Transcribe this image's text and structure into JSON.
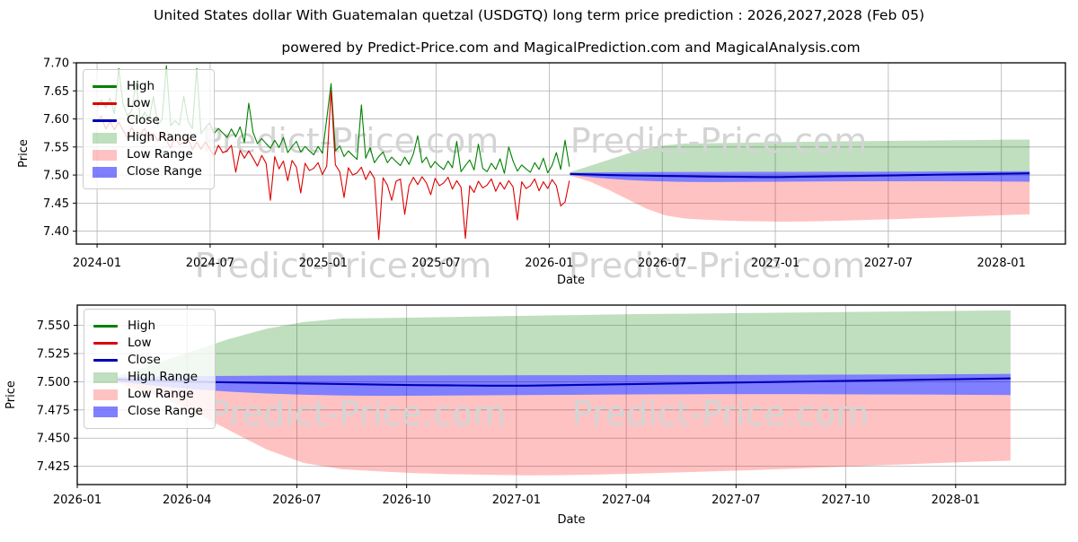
{
  "page": {
    "title": "United States dollar With Guatemalan quetzal (USDGTQ) long term price prediction : 2026,2027,2028 (Feb 05)",
    "subtitle": "powered by Predict-Price.com and MagicalPrediction.com and MagicalAnalysis.com"
  },
  "watermark": {
    "text": "Predict-Price.com"
  },
  "colors": {
    "high": "#008000",
    "low": "#dd0000",
    "close": "#0000b4",
    "high_range": "rgba(0,128,0,0.25)",
    "low_range": "rgba(255,0,0,0.24)",
    "close_range": "rgba(0,0,255,0.5)",
    "grid": "#b0b0b0",
    "frame": "#000000",
    "watermark": "#d4d4d4"
  },
  "chart_data": [
    {
      "type": "line",
      "xlabel": "Date",
      "ylabel": "Price",
      "grid": true,
      "legend_position": "upper left",
      "xlim_months": [
        -1.1,
        51.4
      ],
      "ylim": [
        7.377,
        7.7
      ],
      "xticks": [
        {
          "m": 0,
          "label": "2024-01"
        },
        {
          "m": 6,
          "label": "2024-07"
        },
        {
          "m": 12,
          "label": "2025-01"
        },
        {
          "m": 18,
          "label": "2025-07"
        },
        {
          "m": 24,
          "label": "2026-01"
        },
        {
          "m": 30,
          "label": "2026-07"
        },
        {
          "m": 36,
          "label": "2027-01"
        },
        {
          "m": 42,
          "label": "2027-07"
        },
        {
          "m": 48,
          "label": "2028-01"
        }
      ],
      "yticks": [
        {
          "v": 7.4,
          "label": "7.40"
        },
        {
          "v": 7.45,
          "label": "7.45"
        },
        {
          "v": 7.5,
          "label": "7.50"
        },
        {
          "v": 7.55,
          "label": "7.55"
        },
        {
          "v": 7.6,
          "label": "7.60"
        },
        {
          "v": 7.65,
          "label": "7.65"
        },
        {
          "v": 7.7,
          "label": "7.70"
        }
      ],
      "legend": [
        {
          "label": "High",
          "kind": "line",
          "color": "#008000"
        },
        {
          "label": "Low",
          "kind": "line",
          "color": "#dd0000"
        },
        {
          "label": "Close",
          "kind": "line",
          "color": "#0000b4"
        },
        {
          "label": "High Range",
          "kind": "patch",
          "color": "rgba(0,128,0,0.25)"
        },
        {
          "label": "Low Range",
          "kind": "patch",
          "color": "rgba(255,0,0,0.24)"
        },
        {
          "label": "Close Range",
          "kind": "patch",
          "color": "rgba(0,0,255,0.5)"
        }
      ],
      "historical": {
        "start_month": 0,
        "step_months": 0.23,
        "high": [
          7.621,
          7.634,
          7.62,
          7.637,
          7.609,
          7.69,
          7.626,
          7.606,
          7.615,
          7.665,
          7.598,
          7.612,
          7.598,
          7.64,
          7.589,
          7.599,
          7.695,
          7.588,
          7.597,
          7.589,
          7.64,
          7.596,
          7.583,
          7.69,
          7.574,
          7.584,
          7.593,
          7.574,
          7.583,
          7.575,
          7.567,
          7.582,
          7.568,
          7.586,
          7.558,
          7.628,
          7.576,
          7.556,
          7.565,
          7.556,
          7.548,
          7.562,
          7.549,
          7.567,
          7.54,
          7.551,
          7.56,
          7.541,
          7.551,
          7.543,
          7.536,
          7.551,
          7.539,
          7.6,
          7.663,
          7.543,
          7.552,
          7.533,
          7.543,
          7.535,
          7.528,
          7.625,
          7.53,
          7.549,
          7.522,
          7.533,
          7.541,
          7.522,
          7.532,
          7.524,
          7.517,
          7.532,
          7.519,
          7.538,
          7.57,
          7.522,
          7.532,
          7.513,
          7.524,
          7.516,
          7.51,
          7.525,
          7.513,
          7.56,
          7.506,
          7.517,
          7.527,
          7.509,
          7.555,
          7.512,
          7.506,
          7.521,
          7.51,
          7.529,
          7.503,
          7.55,
          7.525,
          7.507,
          7.518,
          7.511,
          7.505,
          7.522,
          7.51,
          7.53,
          7.504,
          7.517,
          7.54,
          7.51,
          7.562,
          7.515
        ],
        "low": [
          7.597,
          7.605,
          7.582,
          7.595,
          7.581,
          7.594,
          7.58,
          7.566,
          7.585,
          7.571,
          7.574,
          7.583,
          7.56,
          7.574,
          7.561,
          7.574,
          7.562,
          7.548,
          7.567,
          7.554,
          7.558,
          7.567,
          7.545,
          7.559,
          7.546,
          7.559,
          7.547,
          7.534,
          7.553,
          7.54,
          7.543,
          7.553,
          7.505,
          7.544,
          7.53,
          7.543,
          7.53,
          7.516,
          7.535,
          7.521,
          7.455,
          7.533,
          7.511,
          7.525,
          7.49,
          7.526,
          7.514,
          7.468,
          7.521,
          7.508,
          7.512,
          7.522,
          7.501,
          7.516,
          7.65,
          7.518,
          7.506,
          7.46,
          7.513,
          7.5,
          7.504,
          7.514,
          7.492,
          7.507,
          7.494,
          7.385,
          7.495,
          7.482,
          7.455,
          7.489,
          7.493,
          7.43,
          7.481,
          7.496,
          7.483,
          7.497,
          7.486,
          7.465,
          7.494,
          7.481,
          7.486,
          7.496,
          7.475,
          7.49,
          7.478,
          7.387,
          7.481,
          7.469,
          7.489,
          7.477,
          7.482,
          7.493,
          7.471,
          7.487,
          7.475,
          7.49,
          7.479,
          7.42,
          7.488,
          7.476,
          7.481,
          7.493,
          7.472,
          7.488,
          7.476,
          7.492,
          7.481,
          7.445,
          7.452,
          7.49
        ]
      },
      "prediction": {
        "start_month": 25.1,
        "end_month": 49.5,
        "close": [
          7.502,
          7.501,
          7.5,
          7.4995,
          7.499,
          7.4985,
          7.498,
          7.4975,
          7.497,
          7.4968,
          7.4965,
          7.4965,
          7.497,
          7.4975,
          7.498,
          7.4985,
          7.499,
          7.4995,
          7.5,
          7.5005,
          7.501,
          7.5015,
          7.502,
          7.5025,
          7.503
        ],
        "high_range_top": [
          7.505,
          7.516,
          7.527,
          7.538,
          7.547,
          7.553,
          7.556,
          7.5565,
          7.557,
          7.5575,
          7.558,
          7.5585,
          7.559,
          7.5595,
          7.56,
          7.5603,
          7.5606,
          7.561,
          7.5613,
          7.5616,
          7.562,
          7.5623,
          7.5626,
          7.563,
          7.5633
        ],
        "low_range_bottom": [
          7.499,
          7.489,
          7.474,
          7.457,
          7.44,
          7.428,
          7.4225,
          7.4205,
          7.419,
          7.418,
          7.4175,
          7.417,
          7.4172,
          7.4178,
          7.4185,
          7.4195,
          7.4205,
          7.4215,
          7.4227,
          7.424,
          7.4252,
          7.4265,
          7.4278,
          7.429,
          7.43
        ],
        "close_range_top": [
          7.504,
          7.5045,
          7.505,
          7.5052,
          7.5054,
          7.5055,
          7.5055,
          7.5056,
          7.5056,
          7.5057,
          7.5057,
          7.5058,
          7.5058,
          7.5059,
          7.5059,
          7.506,
          7.506,
          7.5061,
          7.5062,
          7.5063,
          7.5064,
          7.5065,
          7.5066,
          7.5068,
          7.507
        ],
        "close_range_bottom": [
          7.5,
          7.4965,
          7.4935,
          7.4912,
          7.4896,
          7.4885,
          7.4878,
          7.4875,
          7.4876,
          7.4878,
          7.488,
          7.4882,
          7.4884,
          7.4886,
          7.4888,
          7.4889,
          7.489,
          7.489,
          7.489,
          7.4889,
          7.4888,
          7.4887,
          7.4886,
          7.4884,
          7.4882
        ]
      }
    },
    {
      "type": "line",
      "xlabel": "Date",
      "ylabel": "Price",
      "grid": true,
      "legend_position": "upper left",
      "xlim_months": [
        24,
        51
      ],
      "ylim": [
        7.4088,
        7.568
      ],
      "xticks": [
        {
          "m": 24,
          "label": "2026-01"
        },
        {
          "m": 27,
          "label": "2026-04"
        },
        {
          "m": 30,
          "label": "2026-07"
        },
        {
          "m": 33,
          "label": "2026-10"
        },
        {
          "m": 36,
          "label": "2027-01"
        },
        {
          "m": 39,
          "label": "2027-04"
        },
        {
          "m": 42,
          "label": "2027-07"
        },
        {
          "m": 45,
          "label": "2027-10"
        },
        {
          "m": 48,
          "label": "2028-01"
        }
      ],
      "yticks": [
        {
          "v": 7.425,
          "label": "7.425"
        },
        {
          "v": 7.45,
          "label": "7.450"
        },
        {
          "v": 7.475,
          "label": "7.475"
        },
        {
          "v": 7.5,
          "label": "7.500"
        },
        {
          "v": 7.525,
          "label": "7.525"
        },
        {
          "v": 7.55,
          "label": "7.550"
        }
      ],
      "legend": [
        {
          "label": "High",
          "kind": "line",
          "color": "#008000"
        },
        {
          "label": "Low",
          "kind": "line",
          "color": "#dd0000"
        },
        {
          "label": "Close",
          "kind": "line",
          "color": "#0000b4"
        },
        {
          "label": "High Range",
          "kind": "patch",
          "color": "rgba(0,128,0,0.25)"
        },
        {
          "label": "Low Range",
          "kind": "patch",
          "color": "rgba(255,0,0,0.24)"
        },
        {
          "label": "Close Range",
          "kind": "patch",
          "color": "rgba(0,0,255,0.5)"
        }
      ],
      "prediction_ref": 0
    }
  ]
}
